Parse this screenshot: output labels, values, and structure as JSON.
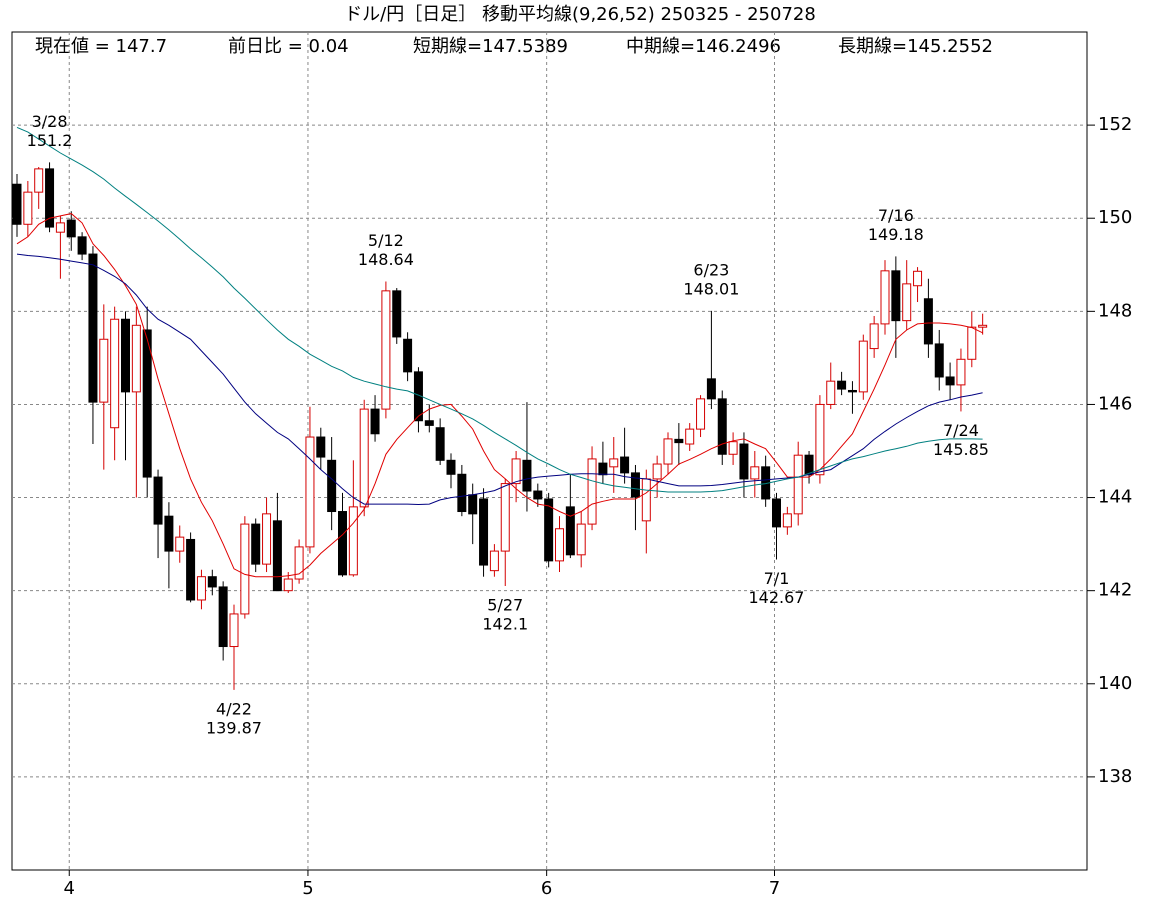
{
  "chart_data": {
    "type": "candlestick",
    "title": "ドル/円［日足］ 移動平均線(9,26,52)  250325 - 250728",
    "info": [
      "現在値 = 147.7",
      "前日比 = 0.04",
      "短期線=147.5389",
      "中期線=146.2496",
      "長期線=145.2552"
    ],
    "categories": [
      null,
      null,
      null,
      null,
      null,
      "4",
      null,
      null,
      null,
      null,
      null,
      null,
      null,
      null,
      null,
      null,
      null,
      null,
      null,
      null,
      null,
      null,
      null,
      null,
      null,
      null,
      null,
      "5",
      null,
      null,
      null,
      null,
      null,
      null,
      null,
      null,
      null,
      null,
      null,
      null,
      null,
      null,
      null,
      null,
      null,
      null,
      null,
      null,
      null,
      "6",
      null,
      null,
      null,
      null,
      null,
      null,
      null,
      null,
      null,
      null,
      null,
      null,
      null,
      null,
      null,
      null,
      null,
      null,
      null,
      null,
      "7",
      null,
      null,
      null,
      null,
      null,
      null,
      null,
      null,
      null,
      null,
      null,
      null,
      null,
      null,
      null,
      null,
      null,
      null,
      null
    ],
    "open": [
      150.73,
      149.87,
      150.56,
      151.06,
      149.7,
      149.96,
      149.6,
      149.23,
      146.05,
      145.5,
      147.83,
      146.27,
      147.6,
      144.44,
      143.6,
      142.85,
      143.1,
      141.8,
      142.3,
      142.08,
      140.8,
      141.5,
      143.43,
      142.57,
      143.5,
      142.0,
      142.25,
      142.94,
      145.3,
      144.8,
      143.7,
      142.34,
      143.8,
      145.9,
      145.9,
      148.44,
      147.4,
      146.7,
      145.65,
      145.5,
      144.8,
      144.5,
      144.06,
      143.97,
      142.43,
      142.85,
      144.3,
      144.8,
      144.14,
      143.97,
      142.64,
      143.8,
      142.77,
      143.43,
      144.74,
      144.66,
      144.87,
      144.53,
      143.5,
      144.4,
      144.72,
      145.25,
      145.15,
      145.47,
      146.55,
      146.12,
      144.93,
      145.15,
      144.4,
      144.66,
      143.97,
      143.37,
      143.65,
      144.91,
      144.49,
      146.0,
      146.5,
      146.3,
      146.27,
      147.2,
      147.73,
      148.87,
      147.8,
      148.55,
      148.27,
      147.3,
      146.59,
      146.42,
      146.97,
      147.66
    ],
    "high": [
      150.95,
      150.8,
      151.1,
      151.2,
      150.05,
      150.15,
      149.7,
      149.4,
      148.15,
      148.1,
      148.0,
      148.1,
      148.1,
      144.6,
      143.9,
      143.4,
      143.25,
      142.45,
      142.45,
      142.2,
      141.7,
      143.6,
      143.55,
      144.0,
      144.1,
      142.4,
      143.1,
      145.95,
      145.5,
      145.3,
      144.1,
      144.8,
      146.1,
      146.2,
      148.64,
      148.5,
      147.55,
      146.8,
      146.0,
      145.7,
      144.95,
      144.7,
      144.3,
      144.2,
      143.0,
      144.4,
      145.0,
      146.05,
      144.3,
      144.1,
      143.6,
      144.5,
      143.7,
      145.1,
      145.2,
      145.3,
      145.5,
      144.7,
      144.6,
      144.9,
      145.4,
      145.6,
      145.6,
      146.2,
      148.01,
      146.3,
      145.4,
      145.4,
      145.0,
      144.9,
      144.1,
      143.8,
      145.2,
      145.0,
      146.2,
      146.9,
      146.7,
      146.5,
      147.5,
      147.9,
      149.1,
      149.18,
      149.1,
      148.95,
      148.7,
      147.6,
      146.9,
      147.2,
      148.0,
      147.95
    ],
    "low": [
      149.6,
      149.6,
      150.2,
      149.7,
      148.7,
      149.3,
      149.1,
      145.15,
      144.6,
      144.8,
      144.8,
      144.0,
      144.0,
      142.7,
      142.05,
      142.6,
      141.75,
      141.6,
      141.9,
      140.5,
      139.87,
      141.4,
      142.4,
      142.4,
      142.0,
      141.95,
      142.15,
      142.8,
      144.6,
      143.3,
      142.3,
      142.3,
      143.6,
      145.2,
      145.7,
      147.3,
      146.5,
      145.4,
      145.4,
      144.7,
      144.2,
      143.6,
      143.0,
      142.3,
      142.3,
      142.1,
      143.9,
      143.7,
      143.8,
      142.5,
      142.4,
      142.7,
      142.5,
      143.3,
      144.3,
      144.1,
      144.3,
      143.3,
      142.8,
      144.0,
      144.5,
      144.7,
      145.0,
      145.3,
      145.9,
      144.7,
      144.7,
      144.0,
      144.0,
      143.8,
      142.67,
      143.2,
      143.4,
      144.3,
      144.3,
      145.9,
      146.2,
      145.8,
      146.1,
      147.0,
      147.5,
      147.0,
      147.6,
      148.2,
      147.0,
      146.3,
      146.1,
      145.85,
      146.8,
      147.5
    ],
    "close": [
      149.87,
      150.56,
      151.06,
      149.81,
      149.9,
      149.6,
      149.23,
      146.05,
      147.4,
      147.83,
      146.27,
      147.7,
      144.44,
      143.43,
      142.85,
      143.15,
      141.8,
      142.3,
      142.08,
      140.8,
      141.5,
      143.43,
      142.57,
      143.65,
      142.0,
      142.25,
      142.94,
      145.3,
      144.87,
      143.7,
      142.34,
      143.8,
      145.9,
      145.37,
      148.44,
      147.45,
      146.7,
      145.65,
      145.55,
      144.8,
      144.5,
      143.7,
      143.65,
      142.55,
      142.85,
      144.3,
      144.83,
      144.14,
      143.97,
      142.64,
      143.33,
      142.77,
      143.43,
      144.83,
      144.49,
      144.83,
      144.53,
      144.01,
      144.4,
      144.72,
      145.26,
      145.18,
      145.47,
      146.12,
      146.12,
      144.93,
      145.2,
      144.4,
      144.66,
      143.97,
      143.37,
      143.65,
      144.91,
      144.49,
      146.0,
      146.5,
      146.33,
      146.27,
      147.36,
      147.73,
      148.87,
      147.8,
      148.59,
      148.86,
      147.3,
      146.59,
      146.42,
      146.97,
      147.66,
      147.7
    ],
    "up_color": "#d40000",
    "down_color": "#000000",
    "series": [
      {
        "color": "#e00000",
        "values": [
          149.45,
          149.6,
          149.87,
          150.0,
          150.05,
          150.1,
          149.9,
          149.45,
          149.2,
          148.9,
          148.55,
          148.15,
          147.4,
          146.55,
          145.8,
          145.05,
          144.4,
          143.9,
          143.5,
          143.0,
          142.47,
          142.35,
          142.3,
          142.3,
          142.3,
          142.32,
          142.36,
          142.55,
          142.8,
          143.0,
          143.2,
          143.45,
          143.75,
          144.3,
          144.93,
          145.25,
          145.5,
          145.75,
          145.9,
          145.98,
          146.0,
          145.75,
          145.47,
          145.0,
          144.6,
          144.4,
          144.19,
          144.0,
          143.86,
          143.82,
          143.7,
          143.6,
          143.7,
          143.86,
          143.92,
          143.97,
          143.97,
          143.97,
          144.1,
          144.3,
          144.5,
          144.72,
          144.82,
          144.93,
          145.05,
          145.15,
          145.22,
          145.26,
          145.15,
          145.05,
          144.75,
          144.44,
          144.44,
          144.44,
          144.6,
          144.83,
          145.1,
          145.37,
          145.85,
          146.33,
          146.85,
          147.4,
          147.6,
          147.73,
          147.75,
          147.75,
          147.73,
          147.7,
          147.65,
          147.5389
        ]
      },
      {
        "color": "#000080",
        "values": [
          149.23,
          149.2,
          149.18,
          149.15,
          149.12,
          149.08,
          149.04,
          149.0,
          148.88,
          148.75,
          148.59,
          148.35,
          148.05,
          147.83,
          147.7,
          147.55,
          147.4,
          147.15,
          146.9,
          146.65,
          146.35,
          146.05,
          145.8,
          145.6,
          145.4,
          145.26,
          145.05,
          144.83,
          144.6,
          144.4,
          144.19,
          144.0,
          143.86,
          143.86,
          143.86,
          143.86,
          143.86,
          143.85,
          143.86,
          143.95,
          144.0,
          144.03,
          144.06,
          144.1,
          144.15,
          144.25,
          144.34,
          144.4,
          144.44,
          144.46,
          144.48,
          144.5,
          144.51,
          144.51,
          144.5,
          144.5,
          144.45,
          144.42,
          144.4,
          144.35,
          144.3,
          144.25,
          144.25,
          144.25,
          144.26,
          144.28,
          144.31,
          144.34,
          144.36,
          144.38,
          144.4,
          144.42,
          144.44,
          144.5,
          144.55,
          144.6,
          144.75,
          144.9,
          145.05,
          145.25,
          145.42,
          145.58,
          145.72,
          145.85,
          145.97,
          146.05,
          146.1,
          146.16,
          146.2,
          146.2496
        ]
      },
      {
        "color": "#008080",
        "values": [
          151.95,
          151.85,
          151.7,
          151.55,
          151.4,
          151.27,
          151.14,
          151.0,
          150.84,
          150.65,
          150.47,
          150.3,
          150.12,
          149.94,
          149.75,
          149.55,
          149.34,
          149.15,
          148.95,
          148.74,
          148.5,
          148.28,
          148.05,
          147.82,
          147.6,
          147.4,
          147.25,
          147.08,
          146.95,
          146.82,
          146.72,
          146.58,
          146.5,
          146.44,
          146.38,
          146.33,
          146.29,
          146.2,
          146.1,
          146.0,
          145.9,
          145.8,
          145.69,
          145.55,
          145.4,
          145.26,
          145.12,
          144.97,
          144.83,
          144.72,
          144.6,
          144.5,
          144.43,
          144.36,
          144.3,
          144.25,
          144.22,
          144.19,
          144.16,
          144.14,
          144.12,
          144.12,
          144.12,
          144.12,
          144.13,
          144.15,
          144.19,
          144.23,
          144.27,
          144.3,
          144.35,
          144.4,
          144.44,
          144.52,
          144.6,
          144.68,
          144.76,
          144.83,
          144.88,
          144.94,
          145.0,
          145.05,
          145.1,
          145.17,
          145.21,
          145.24,
          145.26,
          145.26,
          145.26,
          145.2552
        ]
      }
    ],
    "annotations": [
      {
        "label": "3/28",
        "value": 151.2
      },
      {
        "label": "4/22",
        "value": 139.87
      },
      {
        "label": "5/12",
        "value": 148.64
      },
      {
        "label": "5/27",
        "value": 142.1
      },
      {
        "label": "6/23",
        "value": 148.01
      },
      {
        "label": "7/1",
        "value": 142.67
      },
      {
        "label": "7/16",
        "value": 149.18
      },
      {
        "label": "7/24",
        "value": 145.85
      }
    ],
    "ylim": [
      136,
      154
    ],
    "yticks": [
      138,
      140,
      142,
      144,
      146,
      148,
      150,
      152
    ],
    "grid": true
  }
}
